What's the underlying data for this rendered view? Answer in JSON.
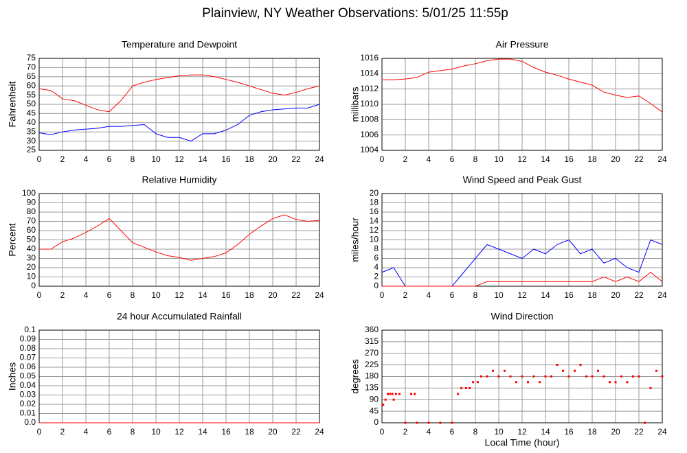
{
  "title": "Plainview, NY Weather Observations: 5/01/25 11:55p",
  "chart_data": [
    {
      "type": "line",
      "title": "Temperature and Dewpoint",
      "ylabel": "Fahrenheit",
      "x": [
        0,
        1,
        2,
        3,
        4,
        5,
        6,
        7,
        8,
        9,
        10,
        11,
        12,
        13,
        14,
        15,
        16,
        17,
        18,
        19,
        20,
        21,
        22,
        23,
        24
      ],
      "series": [
        {
          "color": "#ff0000",
          "values": [
            58.5,
            57.5,
            53,
            52,
            49.5,
            47,
            46,
            52,
            60,
            62,
            63.5,
            64.5,
            65.5,
            66,
            66,
            65,
            63.5,
            62,
            60,
            58,
            56,
            55,
            56.5,
            58.5,
            60
          ]
        },
        {
          "color": "#0000ff",
          "values": [
            34.5,
            33.5,
            35,
            36,
            36.5,
            37,
            38,
            38,
            38.5,
            39,
            34,
            32,
            32,
            30,
            34,
            34,
            36,
            39,
            44,
            46,
            47,
            47.5,
            48,
            48,
            50
          ]
        }
      ],
      "xlim": [
        0,
        24
      ],
      "xticks": [
        0,
        2,
        4,
        6,
        8,
        10,
        12,
        14,
        16,
        18,
        20,
        22,
        24
      ],
      "ylim": [
        25,
        75
      ],
      "yticks": [
        25,
        30,
        35,
        40,
        45,
        50,
        55,
        60,
        65,
        70,
        75
      ],
      "grid": true
    },
    {
      "type": "line",
      "title": "Air Pressure",
      "ylabel": "millibars",
      "x": [
        0,
        1,
        2,
        3,
        4,
        5,
        6,
        7,
        8,
        9,
        10,
        11,
        12,
        13,
        14,
        15,
        16,
        17,
        18,
        19,
        20,
        21,
        22,
        23,
        24
      ],
      "series": [
        {
          "color": "#ff0000",
          "values": [
            1013.2,
            1013.2,
            1013.3,
            1013.5,
            1014.2,
            1014.4,
            1014.6,
            1015,
            1015.3,
            1015.7,
            1015.9,
            1015.9,
            1015.6,
            1014.8,
            1014.2,
            1013.8,
            1013.3,
            1012.9,
            1012.5,
            1011.6,
            1011.2,
            1010.9,
            1011.1,
            1010.1,
            1009
          ]
        }
      ],
      "xlim": [
        0,
        24
      ],
      "xticks": [
        0,
        2,
        4,
        6,
        8,
        10,
        12,
        14,
        16,
        18,
        20,
        22,
        24
      ],
      "ylim": [
        1004,
        1016
      ],
      "yticks": [
        1004,
        1006,
        1008,
        1010,
        1012,
        1014,
        1016
      ],
      "grid": true
    },
    {
      "type": "line",
      "title": "Relative Humidity",
      "ylabel": "Percent",
      "x": [
        0,
        1,
        2,
        3,
        4,
        5,
        6,
        7,
        8,
        9,
        10,
        11,
        12,
        13,
        14,
        15,
        16,
        17,
        18,
        19,
        20,
        21,
        22,
        23,
        24
      ],
      "series": [
        {
          "color": "#ff0000",
          "values": [
            40,
            40,
            48,
            52,
            58,
            65,
            73,
            60,
            47,
            42,
            37,
            33,
            31,
            28,
            30,
            32,
            36,
            45,
            56,
            65,
            73,
            77,
            72,
            70,
            71
          ]
        }
      ],
      "xlim": [
        0,
        24
      ],
      "xticks": [
        0,
        2,
        4,
        6,
        8,
        10,
        12,
        14,
        16,
        18,
        20,
        22,
        24
      ],
      "ylim": [
        0,
        100
      ],
      "yticks": [
        0,
        10,
        20,
        30,
        40,
        50,
        60,
        70,
        80,
        90,
        100
      ],
      "grid": true
    },
    {
      "type": "line",
      "title": "Wind Speed and Peak Gust",
      "ylabel": "miles/hour",
      "x": [
        0,
        1,
        2,
        3,
        4,
        5,
        6,
        7,
        8,
        9,
        10,
        11,
        12,
        13,
        14,
        15,
        16,
        17,
        18,
        19,
        20,
        21,
        22,
        23,
        24
      ],
      "series": [
        {
          "color": "#0000ff",
          "values": [
            3,
            4,
            0,
            0,
            0,
            0,
            0,
            3,
            6,
            9,
            8,
            7,
            6,
            8,
            7,
            9,
            10,
            7,
            8,
            5,
            6,
            4,
            3,
            10,
            9
          ]
        },
        {
          "color": "#ff0000",
          "values": [
            0,
            0,
            0,
            0,
            0,
            0,
            0,
            0,
            0,
            1,
            1,
            1,
            1,
            1,
            1,
            1,
            1,
            1,
            1,
            2,
            1,
            2,
            1,
            3,
            1
          ]
        }
      ],
      "xlim": [
        0,
        24
      ],
      "xticks": [
        0,
        2,
        4,
        6,
        8,
        10,
        12,
        14,
        16,
        18,
        20,
        22,
        24
      ],
      "ylim": [
        0,
        20
      ],
      "yticks": [
        0,
        2,
        4,
        6,
        8,
        10,
        12,
        14,
        16,
        18,
        20
      ],
      "grid": true
    },
    {
      "type": "line",
      "title": "24 hour Accumulated Rainfall",
      "ylabel": "Inches",
      "x": [
        0,
        24
      ],
      "series": [
        {
          "color": "#ff0000",
          "values": [
            0,
            0
          ]
        }
      ],
      "xlim": [
        0,
        24
      ],
      "xticks": [
        0,
        2,
        4,
        6,
        8,
        10,
        12,
        14,
        16,
        18,
        20,
        22,
        24
      ],
      "ylim": [
        0,
        0.1
      ],
      "yticks": [
        {
          "value": 0,
          "label": "0.0"
        },
        0.01,
        0.02,
        0.03,
        0.04,
        0.05,
        0.06,
        0.07,
        0.08,
        0.09,
        0.1
      ],
      "grid": true
    },
    {
      "type": "scatter",
      "title": "Wind Direction",
      "ylabel": "degrees",
      "xlabel": "Local Time (hour)",
      "x": [
        0.1,
        0.3,
        0.5,
        0.7,
        0.9,
        1,
        1.2,
        1.5,
        2,
        2.5,
        2.8,
        3,
        4,
        5,
        6,
        6.5,
        6.8,
        7.2,
        7.5,
        7.8,
        8.2,
        8.5,
        9,
        9.5,
        10,
        10.5,
        11,
        11.5,
        12,
        12.5,
        13,
        13.5,
        14,
        14.5,
        15,
        15.5,
        16,
        16.5,
        17,
        17.5,
        18,
        18.5,
        19,
        19.5,
        20,
        20.5,
        21,
        21.5,
        22,
        22.5,
        23,
        23.5,
        24
      ],
      "series": [
        {
          "color": "#ff0000",
          "values": [
            70,
            90,
            112,
            112,
            112,
            90,
            112,
            112,
            0,
            112,
            112,
            0,
            0,
            0,
            0,
            112,
            135,
            135,
            135,
            158,
            158,
            180,
            180,
            202,
            180,
            202,
            180,
            158,
            180,
            158,
            180,
            158,
            180,
            180,
            225,
            202,
            180,
            202,
            225,
            180,
            180,
            202,
            180,
            158,
            158,
            180,
            158,
            180,
            180,
            0,
            135,
            202,
            180
          ]
        }
      ],
      "xlim": [
        0,
        24
      ],
      "xticks": [
        0,
        2,
        4,
        6,
        8,
        10,
        12,
        14,
        16,
        18,
        20,
        22,
        24
      ],
      "ylim": [
        0,
        360
      ],
      "yticks": [
        0,
        45,
        90,
        135,
        180,
        225,
        270,
        315,
        360
      ],
      "grid": true
    }
  ]
}
